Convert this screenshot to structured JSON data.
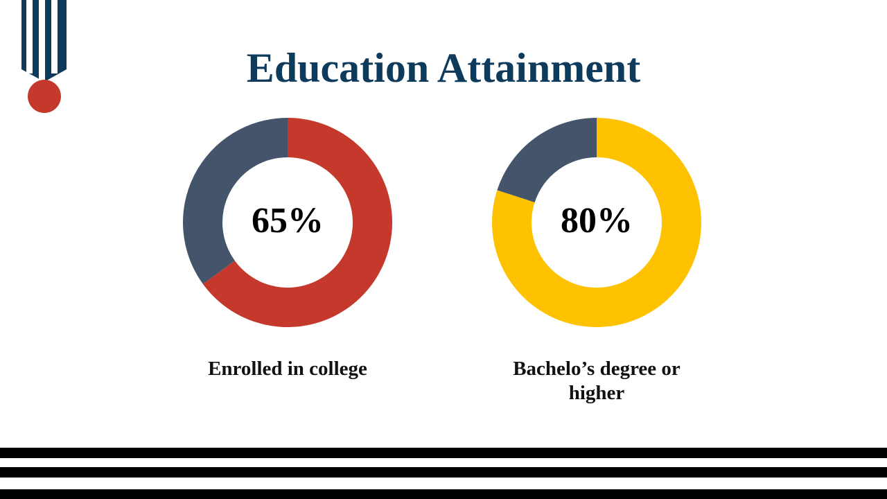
{
  "title": "Education Attainment",
  "chart_data": [
    {
      "type": "donut",
      "title": "Enrolled in college",
      "values": [
        65,
        35
      ],
      "value_labels": [
        "65%",
        null
      ],
      "colors": [
        "#c4392b",
        "#44546a"
      ]
    },
    {
      "type": "donut",
      "title": "Bachelo’s degree or higher",
      "values": [
        80,
        20
      ],
      "value_labels": [
        "80%",
        null
      ],
      "colors": [
        "#fec200",
        "#44546a"
      ]
    }
  ]
}
